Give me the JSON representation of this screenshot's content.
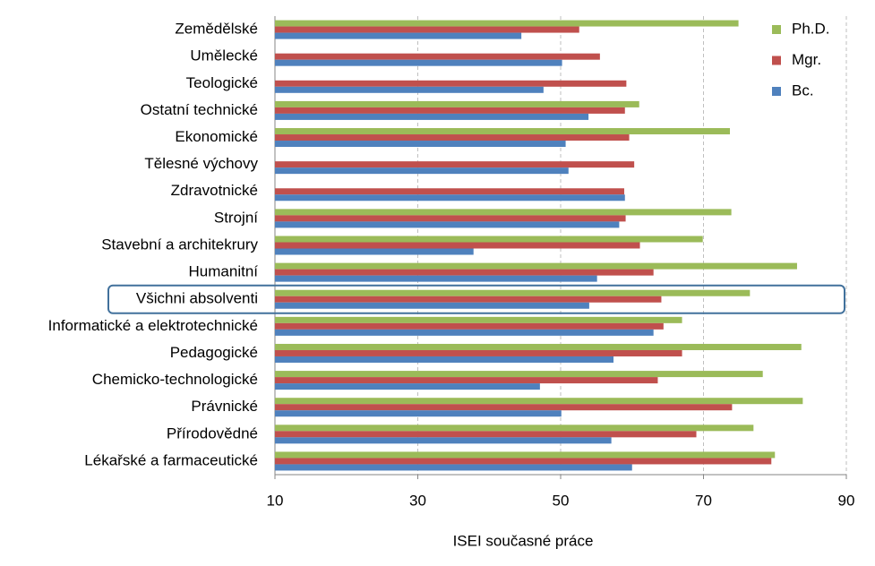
{
  "chart_data": {
    "type": "hbar",
    "xlabel": "ISEI současné práce",
    "categories": [
      "Zemědělské",
      "Umělecké",
      "Teologické",
      "Ostatní technické",
      "Ekonomické",
      "Tělesné výchovy",
      "Zdravotnické",
      "Strojní",
      "Stavební a architekrury",
      "Humanitní",
      "Všichni absolventi",
      "Informatické a elektrotechnické",
      "Pedagogické",
      "Chemicko-technologické",
      "Právnické",
      "Přírodovědné",
      "Lékařské a farmaceutické"
    ],
    "series": [
      {
        "name": "Ph.D.",
        "color": "#9bbb59",
        "values": [
          74.9,
          null,
          null,
          61.0,
          73.7,
          null,
          null,
          73.9,
          69.9,
          83.1,
          76.5,
          67.0,
          83.7,
          78.3,
          83.9,
          77.0,
          80.0
        ]
      },
      {
        "name": "Mgr.",
        "color": "#c0504d",
        "values": [
          52.6,
          55.5,
          59.2,
          59.0,
          59.6,
          60.3,
          58.9,
          59.1,
          61.1,
          63.0,
          64.1,
          64.4,
          67.0,
          63.6,
          74.0,
          69.0,
          79.5
        ]
      },
      {
        "name": "Bc.",
        "color": "#4f81bd",
        "values": [
          44.5,
          50.2,
          47.6,
          53.9,
          50.7,
          51.1,
          59.0,
          58.2,
          37.8,
          55.1,
          54.0,
          63.0,
          57.4,
          47.1,
          50.1,
          57.1,
          60.0
        ]
      }
    ],
    "xlim": [
      10,
      90
    ],
    "xticks": [
      10,
      30,
      50,
      70,
      90
    ],
    "grid": true,
    "legend": "top-right",
    "highlight_index": 10
  }
}
